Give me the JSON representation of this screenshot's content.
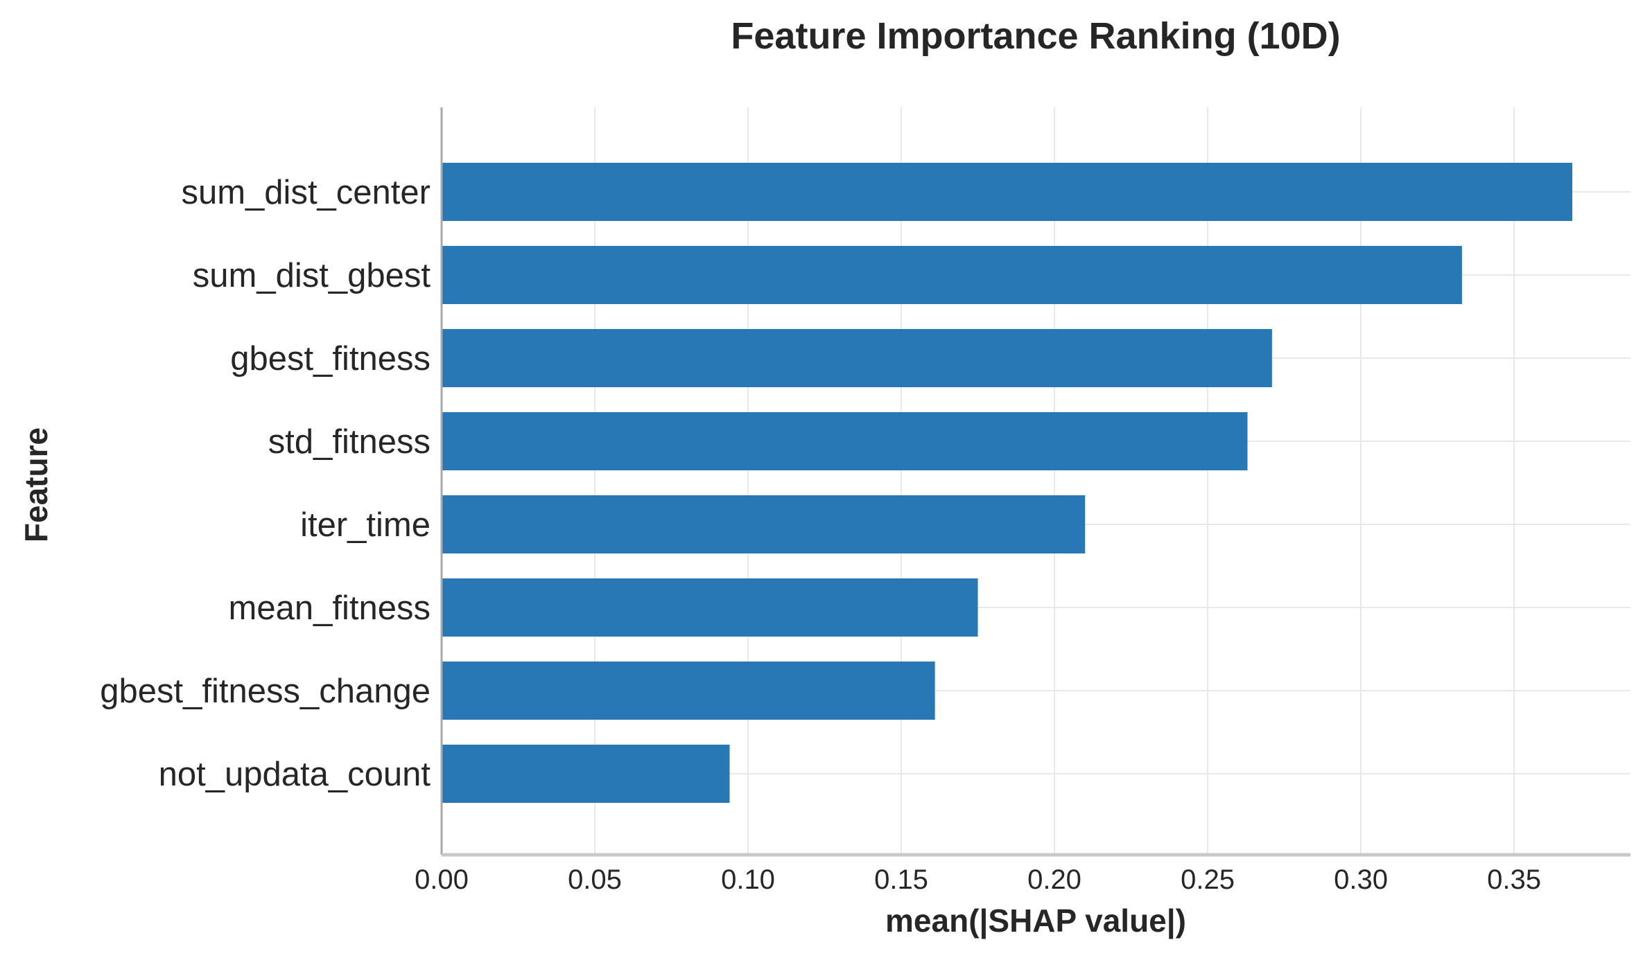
{
  "chart_data": {
    "type": "bar",
    "orientation": "horizontal",
    "title": "Feature Importance Ranking (10D)",
    "xlabel": "mean(|SHAP value|)",
    "ylabel": "Feature",
    "categories": [
      "sum_dist_center",
      "sum_dist_gbest",
      "gbest_fitness",
      "std_fitness",
      "iter_time",
      "mean_fitness",
      "gbest_fitness_change",
      "not_updata_count"
    ],
    "values": [
      0.369,
      0.333,
      0.271,
      0.263,
      0.21,
      0.175,
      0.161,
      0.094
    ],
    "xlim": [
      0,
      0.388
    ],
    "xticks": [
      0.0,
      0.05,
      0.1,
      0.15,
      0.2,
      0.25,
      0.3,
      0.35
    ],
    "xtick_labels": [
      "0.00",
      "0.05",
      "0.10",
      "0.15",
      "0.20",
      "0.25",
      "0.30",
      "0.35"
    ],
    "grid": true,
    "legend": "none",
    "colors": {
      "bar": "#2878b5",
      "grid": "#e8e8e8",
      "text": "#262626"
    }
  }
}
